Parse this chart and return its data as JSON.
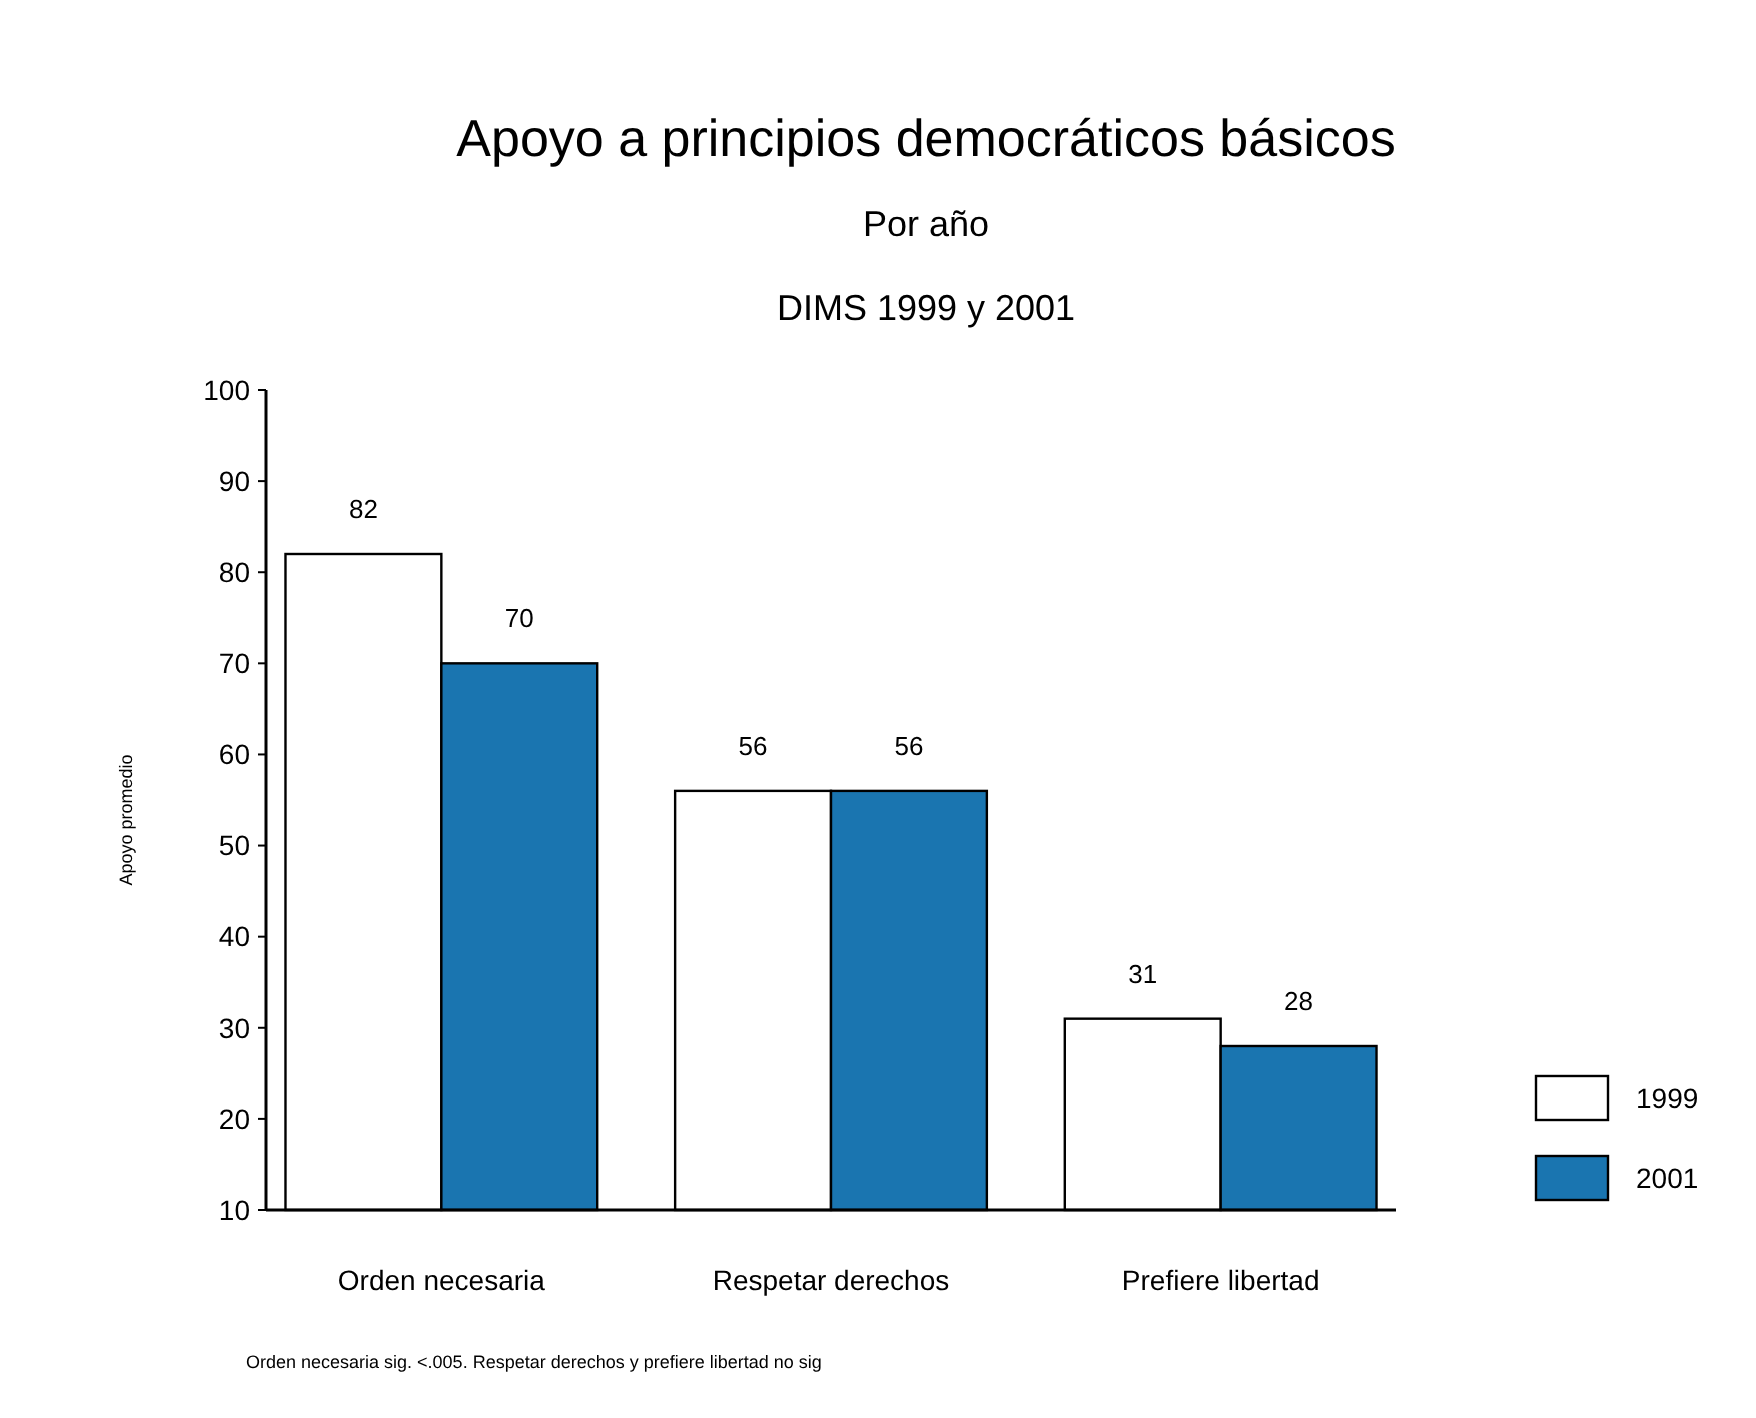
{
  "chart_data": {
    "type": "bar",
    "title": "Apoyo a principios democráticos básicos",
    "subtitle": "Por año\nDIMS 1999 y 2001",
    "ylabel": "Apoyo promedio",
    "categories": [
      "Orden necesaria",
      "Respetar derechos",
      "Prefiere libertad"
    ],
    "series": [
      {
        "name": "1999",
        "color": "#ffffff",
        "values": [
          82,
          56,
          31
        ]
      },
      {
        "name": "2001",
        "color": "#1a75b0",
        "values": [
          70,
          56,
          28
        ]
      }
    ],
    "ylim": [
      10,
      100
    ],
    "yticks": [
      10,
      20,
      30,
      40,
      50,
      60,
      70,
      80,
      90,
      100
    ],
    "data_labels": true,
    "legend": "right",
    "grid": false,
    "annotations": [
      "Orden necesaria sig. <.005. Respetar derechos y prefiere libertad no sig"
    ]
  }
}
